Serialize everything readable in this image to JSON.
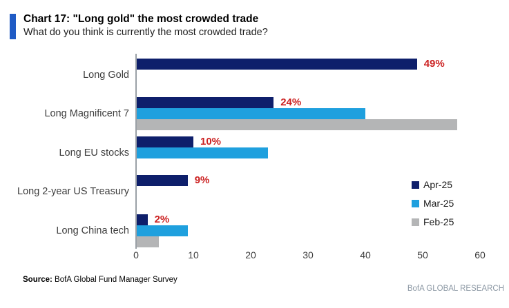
{
  "header": {
    "title": "Chart 17: \"Long gold\" the most crowded trade",
    "subtitle": "What do you think is currently the most crowded trade?",
    "accent_color": "#1f5bc5"
  },
  "chart_data": {
    "type": "bar",
    "orientation": "horizontal",
    "title": "Chart 17: \"Long gold\" the most crowded trade",
    "subtitle": "What do you think is currently the most crowded trade?",
    "categories": [
      "Long Gold",
      "Long Magnificent 7",
      "Long EU stocks",
      "Long 2-year US Treasury",
      "Long China tech"
    ],
    "series": [
      {
        "name": "Apr-25",
        "color": "#0e1f6b",
        "values": [
          49,
          24,
          10,
          9,
          2
        ]
      },
      {
        "name": "Mar-25",
        "color": "#1fa0de",
        "values": [
          null,
          40,
          23,
          null,
          9
        ]
      },
      {
        "name": "Feb-25",
        "color": "#b4b5b6",
        "values": [
          null,
          56,
          null,
          null,
          4
        ]
      }
    ],
    "data_labels": [
      "49%",
      "24%",
      "10%",
      "9%",
      "2%"
    ],
    "data_label_color": "#cc2222",
    "xlim": [
      0,
      60
    ],
    "x_ticks": [
      0,
      10,
      20,
      30,
      40,
      50,
      60
    ],
    "grid": false,
    "legend_position": "inside-right"
  },
  "footer": {
    "source_label": "Source:",
    "source_text": " BofA Global Fund Manager Survey",
    "brand": "BofA GLOBAL RESEARCH"
  }
}
